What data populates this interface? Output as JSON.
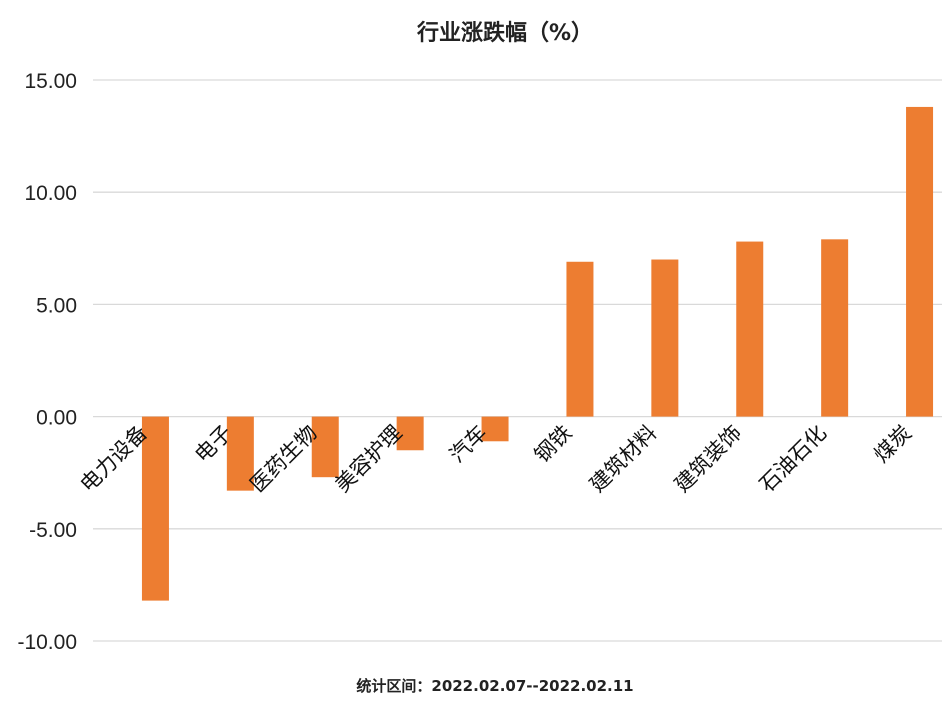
{
  "chart_data": {
    "type": "bar",
    "title": "行业涨跌幅（%）",
    "categories": [
      "电力设备",
      "电子",
      "医药生物",
      "美容护理",
      "汽车",
      "钢铁",
      "建筑材料",
      "建筑装饰",
      "石油石化",
      "煤炭"
    ],
    "series": [
      {
        "values": [
          -8.2,
          -3.3,
          -2.7,
          -1.5,
          -1.1,
          6.9,
          7.0,
          7.8,
          7.9,
          13.8
        ]
      }
    ],
    "yticks": [
      "15.00",
      "10.00",
      "5.00",
      "0.00",
      "-5.00",
      "-10.00"
    ],
    "ylim": [
      -10,
      15
    ],
    "xlabel": "",
    "ylabel": "",
    "grid": true,
    "legend": "none",
    "bar_color": "#ED7D31",
    "footnote": "统计区间：2022.02.07--2022.02.11"
  }
}
